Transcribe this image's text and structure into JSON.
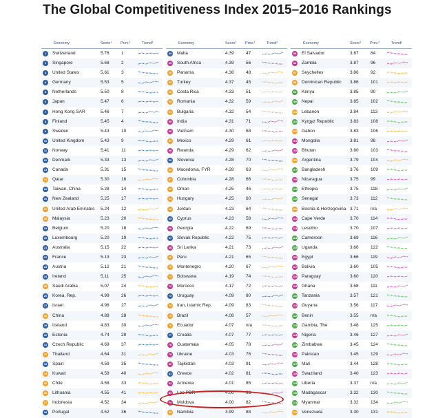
{
  "title": "The Global Competitiveness Index 2015–2016 Rankings",
  "headers": {
    "economy": "Economy",
    "score": "Score¹",
    "prev": "Prev.²",
    "trend": "Trend³"
  },
  "colors": {
    "blue": "#2e5fa3",
    "orange": "#f0a12c",
    "green": "#4ea64a",
    "pink": "#c2398f",
    "lightblue": "#4a9fd6",
    "highlight": "#c8201c"
  },
  "columns": [
    [
      {
        "rank": "1",
        "name": "Switzerland",
        "score": "5.76",
        "prev": "1",
        "color": "blue"
      },
      {
        "rank": "2",
        "name": "Singapore",
        "score": "5.68",
        "prev": "2",
        "color": "blue"
      },
      {
        "rank": "3",
        "name": "United States",
        "score": "5.61",
        "prev": "3",
        "color": "blue"
      },
      {
        "rank": "4",
        "name": "Germany",
        "score": "5.53",
        "prev": "5",
        "color": "blue"
      },
      {
        "rank": "5",
        "name": "Netherlands",
        "score": "5.50",
        "prev": "8",
        "color": "blue"
      },
      {
        "rank": "6",
        "name": "Japan",
        "score": "5.47",
        "prev": "6",
        "color": "blue"
      },
      {
        "rank": "7",
        "name": "Hong Kong SAR",
        "score": "5.46",
        "prev": "7",
        "color": "blue"
      },
      {
        "rank": "8",
        "name": "Finland",
        "score": "5.45",
        "prev": "4",
        "color": "blue"
      },
      {
        "rank": "9",
        "name": "Sweden",
        "score": "5.43",
        "prev": "10",
        "color": "blue"
      },
      {
        "rank": "10",
        "name": "United Kingdom",
        "score": "5.43",
        "prev": "9",
        "color": "blue"
      },
      {
        "rank": "11",
        "name": "Norway",
        "score": "5.41",
        "prev": "11",
        "color": "blue"
      },
      {
        "rank": "12",
        "name": "Denmark",
        "score": "5.33",
        "prev": "13",
        "color": "blue"
      },
      {
        "rank": "13",
        "name": "Canada",
        "score": "5.31",
        "prev": "15",
        "color": "blue"
      },
      {
        "rank": "14",
        "name": "Qatar",
        "score": "5.30",
        "prev": "16",
        "color": "orange"
      },
      {
        "rank": "15",
        "name": "Taiwan, China",
        "score": "5.28",
        "prev": "14",
        "color": "blue"
      },
      {
        "rank": "16",
        "name": "New Zealand",
        "score": "5.25",
        "prev": "17",
        "color": "blue"
      },
      {
        "rank": "17",
        "name": "United Arab Emirates",
        "score": "5.24",
        "prev": "12",
        "color": "orange"
      },
      {
        "rank": "18",
        "name": "Malaysia",
        "score": "5.23",
        "prev": "20",
        "color": "orange"
      },
      {
        "rank": "19",
        "name": "Belgium",
        "score": "5.20",
        "prev": "18",
        "color": "blue"
      },
      {
        "rank": "20",
        "name": "Luxembourg",
        "score": "5.20",
        "prev": "19",
        "color": "blue"
      },
      {
        "rank": "21",
        "name": "Australia",
        "score": "5.15",
        "prev": "22",
        "color": "blue"
      },
      {
        "rank": "22",
        "name": "France",
        "score": "5.13",
        "prev": "23",
        "color": "blue"
      },
      {
        "rank": "23",
        "name": "Austria",
        "score": "5.12",
        "prev": "21",
        "color": "blue"
      },
      {
        "rank": "24",
        "name": "Ireland",
        "score": "5.11",
        "prev": "25",
        "color": "blue"
      },
      {
        "rank": "25",
        "name": "Saudi Arabia",
        "score": "5.07",
        "prev": "24",
        "color": "orange"
      },
      {
        "rank": "26",
        "name": "Korea, Rep.",
        "score": "4.99",
        "prev": "26",
        "color": "blue"
      },
      {
        "rank": "27",
        "name": "Israel",
        "score": "4.98",
        "prev": "27",
        "color": "blue"
      },
      {
        "rank": "28",
        "name": "China",
        "score": "4.89",
        "prev": "28",
        "color": "orange"
      },
      {
        "rank": "29",
        "name": "Iceland",
        "score": "4.83",
        "prev": "30",
        "color": "blue"
      },
      {
        "rank": "30",
        "name": "Estonia",
        "score": "4.74",
        "prev": "29",
        "color": "blue"
      },
      {
        "rank": "31",
        "name": "Czech Republic",
        "score": "4.69",
        "prev": "37",
        "color": "blue"
      },
      {
        "rank": "32",
        "name": "Thailand",
        "score": "4.64",
        "prev": "31",
        "color": "orange"
      },
      {
        "rank": "33",
        "name": "Spain",
        "score": "4.59",
        "prev": "35",
        "color": "blue"
      },
      {
        "rank": "34",
        "name": "Kuwait",
        "score": "4.59",
        "prev": "40",
        "color": "orange"
      },
      {
        "rank": "35",
        "name": "Chile",
        "score": "4.58",
        "prev": "33",
        "color": "orange"
      },
      {
        "rank": "36",
        "name": "Lithuania",
        "score": "4.55",
        "prev": "41",
        "color": "orange"
      },
      {
        "rank": "37",
        "name": "Indonesia",
        "score": "4.52",
        "prev": "34",
        "color": "orange"
      },
      {
        "rank": "38",
        "name": "Portugal",
        "score": "4.52",
        "prev": "36",
        "color": "blue"
      }
    ],
    [
      {
        "rank": "48",
        "name": "Malta",
        "score": "4.39",
        "prev": "47",
        "color": "blue"
      },
      {
        "rank": "49",
        "name": "South Africa",
        "score": "4.39",
        "prev": "56",
        "color": "pink"
      },
      {
        "rank": "50",
        "name": "Panama",
        "score": "4.38",
        "prev": "48",
        "color": "orange"
      },
      {
        "rank": "51",
        "name": "Turkey",
        "score": "4.37",
        "prev": "45",
        "color": "orange"
      },
      {
        "rank": "52",
        "name": "Costa Rica",
        "score": "4.33",
        "prev": "51",
        "color": "orange"
      },
      {
        "rank": "53",
        "name": "Romania",
        "score": "4.32",
        "prev": "59",
        "color": "orange"
      },
      {
        "rank": "54",
        "name": "Bulgaria",
        "score": "4.32",
        "prev": "54",
        "color": "orange"
      },
      {
        "rank": "55",
        "name": "India",
        "score": "4.31",
        "prev": "71",
        "color": "pink"
      },
      {
        "rank": "56",
        "name": "Vietnam",
        "score": "4.30",
        "prev": "68",
        "color": "pink"
      },
      {
        "rank": "57",
        "name": "Mexico",
        "score": "4.29",
        "prev": "61",
        "color": "orange"
      },
      {
        "rank": "58",
        "name": "Rwanda",
        "score": "4.29",
        "prev": "62",
        "color": "pink"
      },
      {
        "rank": "59",
        "name": "Slovenia",
        "score": "4.28",
        "prev": "70",
        "color": "blue"
      },
      {
        "rank": "60",
        "name": "Macedonia, FYR",
        "score": "4.28",
        "prev": "63",
        "color": "orange"
      },
      {
        "rank": "61",
        "name": "Colombia",
        "score": "4.28",
        "prev": "66",
        "color": "orange"
      },
      {
        "rank": "62",
        "name": "Oman",
        "score": "4.25",
        "prev": "46",
        "color": "orange"
      },
      {
        "rank": "63",
        "name": "Hungary",
        "score": "4.25",
        "prev": "60",
        "color": "orange"
      },
      {
        "rank": "64",
        "name": "Jordan",
        "score": "4.23",
        "prev": "64",
        "color": "orange"
      },
      {
        "rank": "65",
        "name": "Cyprus",
        "score": "4.23",
        "prev": "58",
        "color": "blue"
      },
      {
        "rank": "66",
        "name": "Georgia",
        "score": "4.22",
        "prev": "69",
        "color": "pink"
      },
      {
        "rank": "67",
        "name": "Slovak Republic",
        "score": "4.22",
        "prev": "75",
        "color": "blue"
      },
      {
        "rank": "68",
        "name": "Sri Lanka",
        "score": "4.21",
        "prev": "73",
        "color": "pink"
      },
      {
        "rank": "69",
        "name": "Peru",
        "score": "4.21",
        "prev": "65",
        "color": "orange"
      },
      {
        "rank": "70",
        "name": "Montenegro",
        "score": "4.20",
        "prev": "67",
        "color": "orange"
      },
      {
        "rank": "71",
        "name": "Botswana",
        "score": "4.19",
        "prev": "74",
        "color": "orange"
      },
      {
        "rank": "72",
        "name": "Morocco",
        "score": "4.17",
        "prev": "72",
        "color": "pink"
      },
      {
        "rank": "73",
        "name": "Uruguay",
        "score": "4.09",
        "prev": "80",
        "color": "blue"
      },
      {
        "rank": "74",
        "name": "Iran, Islamic Rep.",
        "score": "4.09",
        "prev": "83",
        "color": "orange"
      },
      {
        "rank": "75",
        "name": "Brazil",
        "score": "4.08",
        "prev": "57",
        "color": "orange"
      },
      {
        "rank": "76",
        "name": "Ecuador",
        "score": "4.07",
        "prev": "n/a",
        "color": "orange"
      },
      {
        "rank": "77",
        "name": "Croatia",
        "score": "4.07",
        "prev": "77",
        "color": "blue"
      },
      {
        "rank": "78",
        "name": "Guatemala",
        "score": "4.05",
        "prev": "78",
        "color": "pink"
      },
      {
        "rank": "79",
        "name": "Ukraine",
        "score": "4.03",
        "prev": "76",
        "color": "pink"
      },
      {
        "rank": "80",
        "name": "Tajikistan",
        "score": "4.03",
        "prev": "91",
        "color": "pink"
      },
      {
        "rank": "81",
        "name": "Greece",
        "score": "4.02",
        "prev": "81",
        "color": "blue"
      },
      {
        "rank": "82",
        "name": "Armenia",
        "score": "4.01",
        "prev": "85",
        "color": "pink"
      },
      {
        "rank": "83",
        "name": "Lao PDR",
        "score": "4.00",
        "prev": "93",
        "color": "pink"
      },
      {
        "rank": "84",
        "name": "Moldova",
        "score": "4.00",
        "prev": "82",
        "color": "pink"
      },
      {
        "rank": "85",
        "name": "Namibia",
        "score": "3.99",
        "prev": "88",
        "color": "orange"
      }
    ],
    [
      {
        "rank": "95",
        "name": "El Salvador",
        "score": "3.87",
        "prev": "84",
        "color": "pink"
      },
      {
        "rank": "96",
        "name": "Zambia",
        "score": "3.87",
        "prev": "96",
        "color": "pink"
      },
      {
        "rank": "97",
        "name": "Seychelles",
        "score": "3.86",
        "prev": "92",
        "color": "orange"
      },
      {
        "rank": "98",
        "name": "Dominican Republic",
        "score": "3.86",
        "prev": "101",
        "color": "orange"
      },
      {
        "rank": "99",
        "name": "Kenya",
        "score": "3.85",
        "prev": "90",
        "color": "green"
      },
      {
        "rank": "100",
        "name": "Nepal",
        "score": "3.85",
        "prev": "102",
        "color": "green"
      },
      {
        "rank": "101",
        "name": "Lebanon",
        "score": "3.84",
        "prev": "113",
        "color": "orange"
      },
      {
        "rank": "102",
        "name": "Kyrgyz Republic",
        "score": "3.83",
        "prev": "108",
        "color": "green"
      },
      {
        "rank": "103",
        "name": "Gabon",
        "score": "3.83",
        "prev": "106",
        "color": "orange"
      },
      {
        "rank": "104",
        "name": "Mongolia",
        "score": "3.81",
        "prev": "98",
        "color": "pink"
      },
      {
        "rank": "105",
        "name": "Bhutan",
        "score": "3.80",
        "prev": "103",
        "color": "pink"
      },
      {
        "rank": "106",
        "name": "Argentina",
        "score": "3.79",
        "prev": "104",
        "color": "orange"
      },
      {
        "rank": "107",
        "name": "Bangladesh",
        "score": "3.76",
        "prev": "109",
        "color": "green"
      },
      {
        "rank": "108",
        "name": "Nicaragua",
        "score": "3.75",
        "prev": "99",
        "color": "pink"
      },
      {
        "rank": "109",
        "name": "Ethiopia",
        "score": "3.75",
        "prev": "118",
        "color": "green"
      },
      {
        "rank": "110",
        "name": "Senegal",
        "score": "3.73",
        "prev": "112",
        "color": "green"
      },
      {
        "rank": "111",
        "name": "Bosnia & Herzegovina",
        "score": "3.71",
        "prev": "n/a",
        "color": "orange"
      },
      {
        "rank": "112",
        "name": "Cape Verde",
        "score": "3.70",
        "prev": "114",
        "color": "pink"
      },
      {
        "rank": "113",
        "name": "Lesotho",
        "score": "3.70",
        "prev": "107",
        "color": "pink"
      },
      {
        "rank": "114",
        "name": "Cameroon",
        "score": "3.69",
        "prev": "116",
        "color": "green"
      },
      {
        "rank": "115",
        "name": "Uganda",
        "score": "3.66",
        "prev": "122",
        "color": "green"
      },
      {
        "rank": "116",
        "name": "Egypt",
        "score": "3.66",
        "prev": "119",
        "color": "pink"
      },
      {
        "rank": "117",
        "name": "Bolivia",
        "score": "3.60",
        "prev": "105",
        "color": "pink"
      },
      {
        "rank": "118",
        "name": "Paraguay",
        "score": "3.60",
        "prev": "120",
        "color": "pink"
      },
      {
        "rank": "119",
        "name": "Ghana",
        "score": "3.58",
        "prev": "111",
        "color": "pink"
      },
      {
        "rank": "120",
        "name": "Tanzania",
        "score": "3.57",
        "prev": "121",
        "color": "green"
      },
      {
        "rank": "121",
        "name": "Guyana",
        "score": "3.56",
        "prev": "117",
        "color": "pink"
      },
      {
        "rank": "122",
        "name": "Benin",
        "score": "3.55",
        "prev": "n/a",
        "color": "green"
      },
      {
        "rank": "123",
        "name": "Gambia, The",
        "score": "3.48",
        "prev": "125",
        "color": "green"
      },
      {
        "rank": "124",
        "name": "Nigeria",
        "score": "3.46",
        "prev": "127",
        "color": "pink"
      },
      {
        "rank": "125",
        "name": "Zimbabwe",
        "score": "3.45",
        "prev": "124",
        "color": "green"
      },
      {
        "rank": "126",
        "name": "Pakistan",
        "score": "3.45",
        "prev": "129",
        "color": "pink"
      },
      {
        "rank": "127",
        "name": "Mali",
        "score": "3.44",
        "prev": "128",
        "color": "green"
      },
      {
        "rank": "128",
        "name": "Swaziland",
        "score": "3.40",
        "prev": "123",
        "color": "pink"
      },
      {
        "rank": "129",
        "name": "Liberia",
        "score": "3.37",
        "prev": "n/a",
        "color": "green"
      },
      {
        "rank": "130",
        "name": "Madagascar",
        "score": "3.32",
        "prev": "130",
        "color": "green"
      },
      {
        "rank": "131",
        "name": "Myanmar",
        "score": "3.32",
        "prev": "134",
        "color": "green"
      },
      {
        "rank": "132",
        "name": "Venezuela",
        "score": "3.30",
        "prev": "131",
        "color": "orange"
      }
    ]
  ]
}
